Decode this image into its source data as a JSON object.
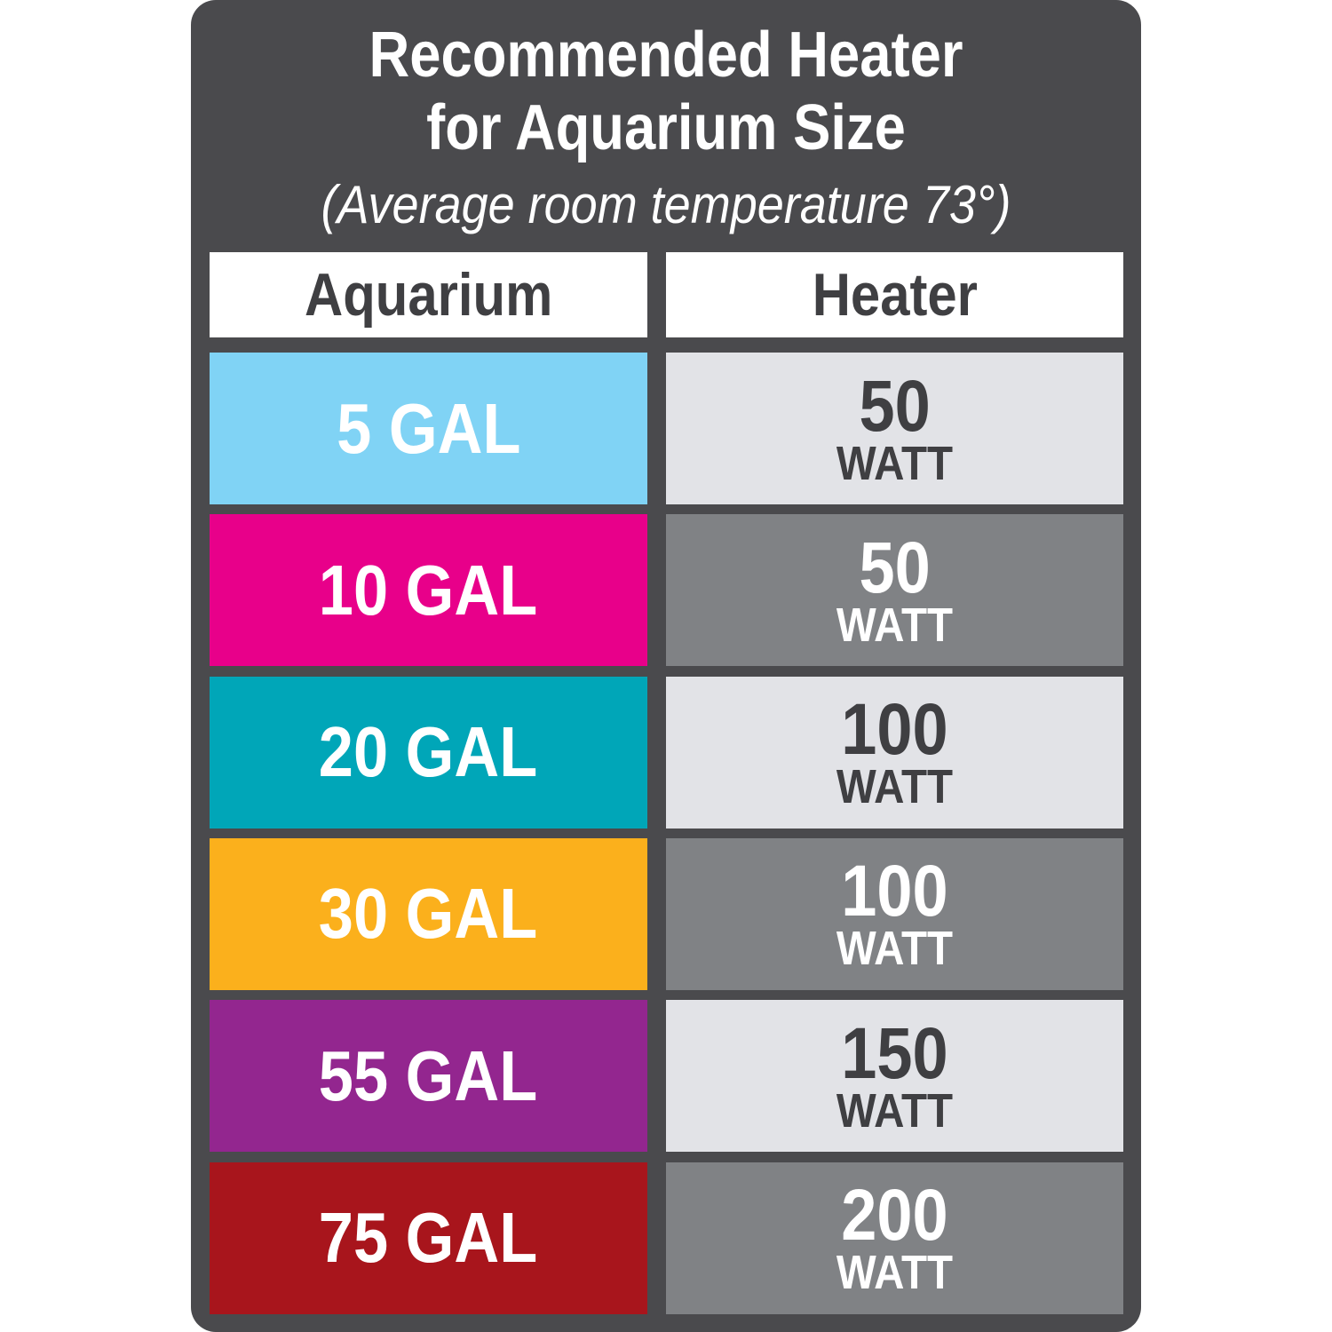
{
  "title_line1": "Recommended Heater",
  "title_line2": "for Aquarium Size",
  "subtitle": "(Average room temperature 73°)",
  "headers": {
    "aquarium": "Aquarium",
    "heater": "Heater"
  },
  "colors": {
    "panel": "#4a4a4d",
    "heater_light": "#e2e3e7",
    "heater_dark": "#808285"
  },
  "rows": [
    {
      "aquarium": "5 GAL",
      "watts": "50",
      "unit": "WATT",
      "color": "#80d3f5",
      "shade": "light"
    },
    {
      "aquarium": "10 GAL",
      "watts": "50",
      "unit": "WATT",
      "color": "#e8008a",
      "shade": "dark"
    },
    {
      "aquarium": "20 GAL",
      "watts": "100",
      "unit": "WATT",
      "color": "#00a6b8",
      "shade": "light"
    },
    {
      "aquarium": "30 GAL",
      "watts": "100",
      "unit": "WATT",
      "color": "#fbb01c",
      "shade": "dark"
    },
    {
      "aquarium": "55 GAL",
      "watts": "150",
      "unit": "WATT",
      "color": "#93268f",
      "shade": "light"
    },
    {
      "aquarium": "75 GAL",
      "watts": "200",
      "unit": "WATT",
      "color": "#a8151c",
      "shade": "dark"
    }
  ]
}
